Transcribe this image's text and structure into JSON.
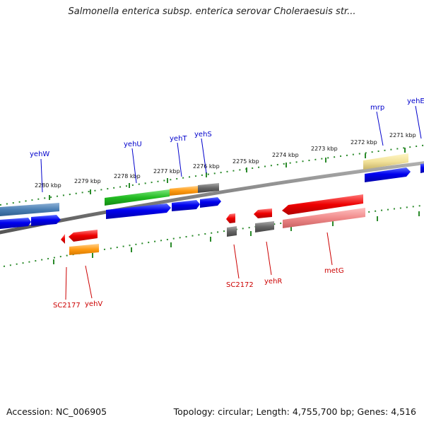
{
  "title": "Salmonella enterica subsp. enterica serovar Choleraesuis str...",
  "accession": "Accession: NC_006905",
  "stats": "Topology: circular; Length: 4,755,700 bp; Genes: 4,516",
  "colors": {
    "forward_label": "#0000cc",
    "reverse_label": "#cc0000",
    "backbone": "#808080",
    "tick": "#2a8a2a"
  },
  "scale_labels": [
    "2280 kbp",
    "2279 kbp",
    "2278 kbp",
    "2277 kbp",
    "2276 kbp",
    "2275 kbp",
    "2274 kbp",
    "2273 kbp",
    "2272 kbp",
    "2271 kbp"
  ],
  "forward_genes": [
    "yehW",
    "yehU",
    "yehT",
    "yehS",
    "mrp",
    "yehE"
  ],
  "reverse_genes": [
    "SC2177",
    "yehV",
    "SC2172",
    "yehR",
    "metG"
  ]
}
